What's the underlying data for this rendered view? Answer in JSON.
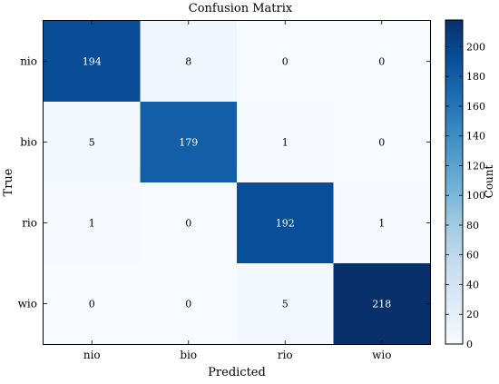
{
  "chart_data": {
    "type": "heatmap",
    "title": "Confusion Matrix",
    "xlabel": "Predicted",
    "ylabel": "True",
    "x_categories": [
      "nio",
      "bio",
      "rio",
      "wio"
    ],
    "y_categories": [
      "nio",
      "bio",
      "rio",
      "wio"
    ],
    "values": [
      [
        194,
        8,
        0,
        0
      ],
      [
        5,
        179,
        1,
        0
      ],
      [
        1,
        0,
        192,
        1
      ],
      [
        0,
        0,
        5,
        218
      ]
    ],
    "colorbar": {
      "label": "Count",
      "range": [
        0,
        218
      ],
      "ticks": [
        0,
        20,
        40,
        60,
        80,
        100,
        120,
        140,
        160,
        180,
        200
      ],
      "colors": [
        "#f7fbff",
        "#deebf7",
        "#c6dbef",
        "#9ecae1",
        "#6baed6",
        "#4292c6",
        "#2171b5",
        "#08519c",
        "#08306b"
      ]
    }
  }
}
